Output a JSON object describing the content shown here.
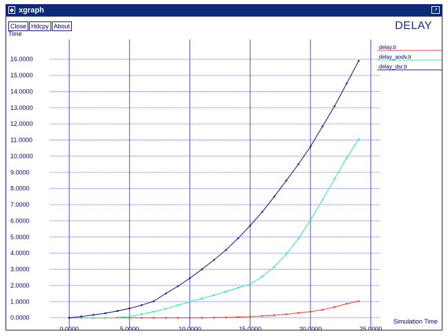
{
  "window": {
    "title": "xgraph",
    "sys_glyph": "◆",
    "max_glyph": "↗"
  },
  "toolbar": {
    "close_label": "Close",
    "hdcpy_label": "Hdcpy",
    "about_label": "About"
  },
  "chart_data": {
    "type": "line",
    "title": "DELAY",
    "ylabel": "Time",
    "xlabel": "Simulation Time",
    "xlim": [
      -1.5,
      25.5
    ],
    "ylim": [
      -0.4,
      16.8
    ],
    "x_ticks": [
      "0.0000",
      "5.0000",
      "10.0000",
      "15.0000",
      "20.0000",
      "25.0000"
    ],
    "y_ticks": [
      "0.0000",
      "1.0000",
      "2.0000",
      "3.0000",
      "4.0000",
      "5.0000",
      "6.0000",
      "7.0000",
      "8.0000",
      "9.0000",
      "10.0000",
      "11.0000",
      "12.0000",
      "13.0000",
      "14.0000",
      "15.0000",
      "16.0000"
    ],
    "grid": true,
    "legend_position": "top-right",
    "series": [
      {
        "name": "delay.tr",
        "color": "#ff3b3b",
        "points": [
          [
            0,
            0
          ],
          [
            1,
            0
          ],
          [
            2,
            0
          ],
          [
            3,
            0
          ],
          [
            4,
            0
          ],
          [
            5,
            0
          ],
          [
            6,
            0
          ],
          [
            7,
            0
          ],
          [
            8,
            0
          ],
          [
            9,
            0
          ],
          [
            10,
            0
          ],
          [
            11,
            0
          ],
          [
            12,
            0.01
          ],
          [
            13,
            0.02
          ],
          [
            14,
            0.04
          ],
          [
            15,
            0.07
          ],
          [
            16,
            0.11
          ],
          [
            17,
            0.16
          ],
          [
            18,
            0.22
          ],
          [
            19,
            0.3
          ],
          [
            20,
            0.38
          ],
          [
            21,
            0.5
          ],
          [
            22,
            0.67
          ],
          [
            23,
            0.87
          ],
          [
            24,
            1.03
          ]
        ]
      },
      {
        "name": "delay_aodv.tr",
        "color": "#33ee99",
        "points": [
          [
            0,
            0
          ],
          [
            1,
            0
          ],
          [
            2,
            0
          ],
          [
            3,
            0
          ],
          [
            4,
            0.02
          ],
          [
            5,
            0.08
          ],
          [
            6,
            0.22
          ],
          [
            7,
            0.38
          ],
          [
            8,
            0.56
          ],
          [
            9,
            0.78
          ],
          [
            10,
            0.98
          ],
          [
            11,
            1.2
          ],
          [
            12,
            1.4
          ],
          [
            13,
            1.62
          ],
          [
            14,
            1.86
          ],
          [
            15,
            2.1
          ],
          [
            16,
            2.55
          ],
          [
            17,
            3.15
          ],
          [
            18,
            3.95
          ],
          [
            19,
            4.9
          ],
          [
            20,
            6.05
          ],
          [
            21,
            7.3
          ],
          [
            22,
            8.6
          ],
          [
            23,
            9.9
          ],
          [
            24,
            11.05
          ]
        ]
      },
      {
        "name": "delay_dsr.tr",
        "color": "#1a1a90",
        "points": [
          [
            0,
            0
          ],
          [
            1,
            0.08
          ],
          [
            2,
            0.18
          ],
          [
            3,
            0.28
          ],
          [
            4,
            0.42
          ],
          [
            5,
            0.58
          ],
          [
            6,
            0.78
          ],
          [
            7,
            1.02
          ],
          [
            8,
            1.5
          ],
          [
            9,
            1.95
          ],
          [
            10,
            2.45
          ],
          [
            11,
            3.0
          ],
          [
            12,
            3.58
          ],
          [
            13,
            4.2
          ],
          [
            14,
            4.92
          ],
          [
            15,
            5.7
          ],
          [
            16,
            6.55
          ],
          [
            17,
            7.5
          ],
          [
            18,
            8.5
          ],
          [
            19,
            9.5
          ],
          [
            20,
            10.6
          ],
          [
            21,
            11.85
          ],
          [
            22,
            13.1
          ],
          [
            23,
            14.5
          ],
          [
            24,
            15.9
          ]
        ]
      }
    ]
  }
}
